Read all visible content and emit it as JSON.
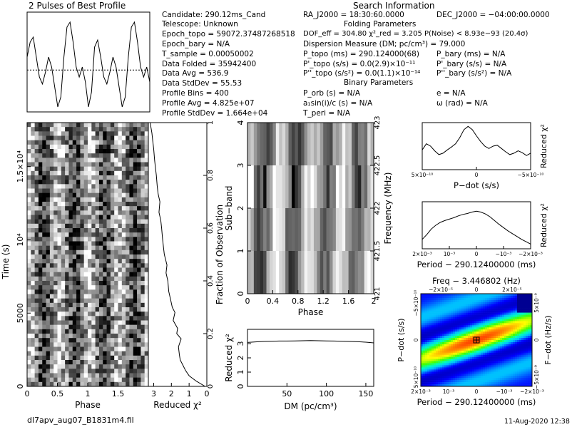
{
  "header": {
    "profile_title": "2 Pulses of Best Profile",
    "search_title": "Search Information",
    "folding_title": "Folding Parameters",
    "binary_title": "Binary Parameters"
  },
  "info_left": [
    "Candidate:  290.12ms_Cand",
    "Telescope:   Unknown",
    "Epoch_topo = 59072.37487268518",
    "Epoch_bary = N/A",
    "T_sample         =  0.00050002",
    "Data Folded     =  35942400",
    "Data Avg          =  536.9",
    "Data StdDev    =  55.53",
    "Profile Bins      =  400",
    "Profile Avg       =  4.825e+07",
    "Profile StdDev  =  1.664e+04"
  ],
  "info_right": {
    "ra": "RA_J2000 = 18:30:60.0000",
    "dec": "DEC_J2000 = −04:00:00.0000",
    "dof": "DOF_eff = 304.80   χ²_red = 3.205   P(Noise) < 8.93e−93   (20.4σ)",
    "dm": "Dispersion Measure (DM; pc/cm³) = 79.000",
    "p_topo": "P_topo (ms)  =  290.124000(68)",
    "p_bary": "P_bary (ms) = N/A",
    "pd_topo": "P'_topo (s/s) = 0.0(2.9)×10⁻¹¹",
    "pd_bary": "P'_bary (s/s) = N/A",
    "pdd_topo": "P''_topo (s/s²) = 0.0(1.1)×10⁻¹⁴",
    "pdd_bary": "P''_bary (s/s²) = N/A",
    "p_orb": "P_orb (s) = N/A",
    "e": "e = N/A",
    "asini": "a₁sin(i)/c (s) = N/A",
    "omega": "ω (rad) = N/A",
    "t_peri": "T_peri = N/A"
  },
  "footer": {
    "filename": "dl7apv_aug07_B1831m4.fil",
    "date": "11-Aug-2020  12:38"
  },
  "chart_data": [
    {
      "id": "profile",
      "type": "line",
      "title": "2 Pulses of Best Profile",
      "x": [
        0,
        0.05,
        0.1,
        0.15,
        0.2,
        0.25,
        0.3,
        0.35,
        0.4,
        0.45,
        0.5,
        0.55,
        0.6,
        0.65,
        0.7,
        0.75,
        0.8,
        0.85,
        0.9,
        0.95,
        1.0,
        1.05,
        1.1,
        1.15,
        1.2,
        1.25,
        1.3,
        1.35,
        1.4,
        1.45,
        1.5,
        1.55,
        1.6,
        1.65,
        1.7,
        1.75,
        1.8,
        1.85,
        1.9,
        1.95,
        2.0
      ],
      "y": [
        0.55,
        0.7,
        0.75,
        0.55,
        0.35,
        0.28,
        0.4,
        0.55,
        0.45,
        0.25,
        0.05,
        0.15,
        0.55,
        0.85,
        0.9,
        0.7,
        0.45,
        0.35,
        0.45,
        0.3,
        0.05,
        0.2,
        0.65,
        0.72,
        0.55,
        0.35,
        0.28,
        0.4,
        0.55,
        0.45,
        0.25,
        0.05,
        0.15,
        0.55,
        0.85,
        0.9,
        0.7,
        0.45,
        0.35,
        0.45,
        0.3
      ],
      "average_line": 0.42
    },
    {
      "id": "time-phase",
      "type": "heatmap",
      "xlabel": "Phase",
      "ylabel": "Time (s)",
      "xlim": [
        0,
        2
      ],
      "ylim": [
        0,
        18000
      ],
      "x_ticks": [
        "0",
        "0.5",
        "1",
        "1.5"
      ],
      "y_ticks": [
        "0",
        "5000",
        "10⁴",
        "1.5×10⁴"
      ],
      "y_tick_values": [
        0,
        5000,
        10000,
        15000
      ],
      "right_label": "Fraction of Observation",
      "right_ticks": [
        "0",
        "0.2",
        "0.4",
        "0.6",
        "0.8",
        "1"
      ],
      "rows": 60,
      "cols": 32,
      "seed": 7
    },
    {
      "id": "time-chi2",
      "type": "line",
      "xlabel": "Reduced χ²",
      "x_ticks": [
        "3",
        "2",
        "1",
        "0"
      ],
      "xlim": [
        3.3,
        0
      ],
      "ylim": [
        0,
        1
      ],
      "frac": [
        0,
        0.02,
        0.04,
        0.06,
        0.08,
        0.1,
        0.12,
        0.15,
        0.18,
        0.2,
        0.22,
        0.25,
        0.28,
        0.3,
        0.33,
        0.36,
        0.4,
        0.43,
        0.46,
        0.5,
        0.53,
        0.56,
        0.6,
        0.63,
        0.66,
        0.7,
        0.73,
        0.76,
        0.8,
        0.83,
        0.86,
        0.9,
        0.93,
        0.96,
        1.0
      ],
      "chi2": [
        0.1,
        0.6,
        1.0,
        1.2,
        1.35,
        1.5,
        1.55,
        1.6,
        1.45,
        1.7,
        1.65,
        1.9,
        1.8,
        1.95,
        2.05,
        2.15,
        2.2,
        2.3,
        2.25,
        2.4,
        2.45,
        2.5,
        2.55,
        2.6,
        2.7,
        2.65,
        2.75,
        2.8,
        2.85,
        2.9,
        2.95,
        3.0,
        3.05,
        3.1,
        3.2
      ]
    },
    {
      "id": "subband-phase",
      "type": "heatmap",
      "xlabel": "Phase",
      "ylabel": "Sub−band",
      "right_label": "Frequency (MHz)",
      "x_ticks": [
        "0",
        "0.4",
        "0.8",
        "1.2",
        "1.6",
        "2"
      ],
      "y_ticks": [
        "0",
        "1",
        "2",
        "3",
        "4"
      ],
      "freq_ticks": [
        "421",
        "421.5",
        "422",
        "422.5",
        "423"
      ],
      "xlim": [
        0,
        2
      ],
      "rows": 4,
      "cols": 40,
      "seed": 3
    },
    {
      "id": "dm-chi2",
      "type": "line",
      "xlabel": "DM (pc/cm³)",
      "ylabel": "Reduced χ²",
      "xlim": [
        0,
        160
      ],
      "ylim": [
        0,
        4
      ],
      "x_ticks": [
        50,
        100,
        150
      ],
      "y_ticks": [
        0,
        1,
        2,
        3
      ],
      "x": [
        0,
        10,
        20,
        30,
        40,
        50,
        60,
        70,
        80,
        90,
        100,
        110,
        120,
        130,
        140,
        150,
        160
      ],
      "y": [
        3.08,
        3.12,
        3.15,
        3.16,
        3.18,
        3.18,
        3.19,
        3.2,
        3.21,
        3.2,
        3.19,
        3.18,
        3.16,
        3.15,
        3.13,
        3.1,
        3.05
      ]
    },
    {
      "id": "pdot-chi2",
      "type": "line",
      "xlabel": "P−dot (s/s)",
      "ylabel": "Reduced χ²",
      "x_ticks": [
        "5×10⁻¹⁰",
        "0",
        "−5×10⁻¹⁰"
      ],
      "y": [
        0.42,
        0.55,
        0.5,
        0.4,
        0.32,
        0.35,
        0.42,
        0.48,
        0.55,
        0.68,
        0.85,
        0.92,
        0.85,
        0.72,
        0.6,
        0.5,
        0.45,
        0.5,
        0.52,
        0.45,
        0.38,
        0.32,
        0.35,
        0.4,
        0.36,
        0.3,
        0.35
      ]
    },
    {
      "id": "period-chi2",
      "type": "line",
      "xlabel": "Period − 290.12400000 (ms)",
      "ylabel": "Reduced χ²",
      "x_ticks": [
        "2×10⁻³",
        "10⁻³",
        "0",
        "−10⁻³",
        "−2×10⁻³"
      ],
      "y": [
        0.2,
        0.3,
        0.42,
        0.5,
        0.56,
        0.6,
        0.63,
        0.66,
        0.7,
        0.73,
        0.75,
        0.78,
        0.8,
        0.78,
        0.74,
        0.68,
        0.6,
        0.52,
        0.45,
        0.38,
        0.32,
        0.26,
        0.2,
        0.15,
        0.1
      ]
    },
    {
      "id": "pdot-period",
      "type": "heatmap",
      "title": "Freq − 3.446802 (Hz)",
      "xlabel": "Period − 290.12400000 (ms)",
      "ylabel": "P−dot (s/s)",
      "right_label": "F−dot (Hz/s)",
      "top_ticks": [
        "−2×10⁻⁵",
        "0",
        "2×10⁻⁵"
      ],
      "bottom_ticks": [
        "2×10⁻³",
        "10⁻³",
        "0",
        "−10⁻³",
        "−2×10⁻³"
      ],
      "left_ticks": [
        "−5×10⁻¹⁰",
        "0",
        "5×10⁻¹⁰"
      ],
      "right_ticks": [
        "5×10⁻⁹",
        "0",
        "−5×10⁻⁹"
      ]
    }
  ],
  "colors": {
    "grid_cmap": [
      "#000080",
      "#0000ff",
      "#00bfff",
      "#00ffbf",
      "#40ff00",
      "#ffff00",
      "#ff8000",
      "#ff0000"
    ]
  }
}
